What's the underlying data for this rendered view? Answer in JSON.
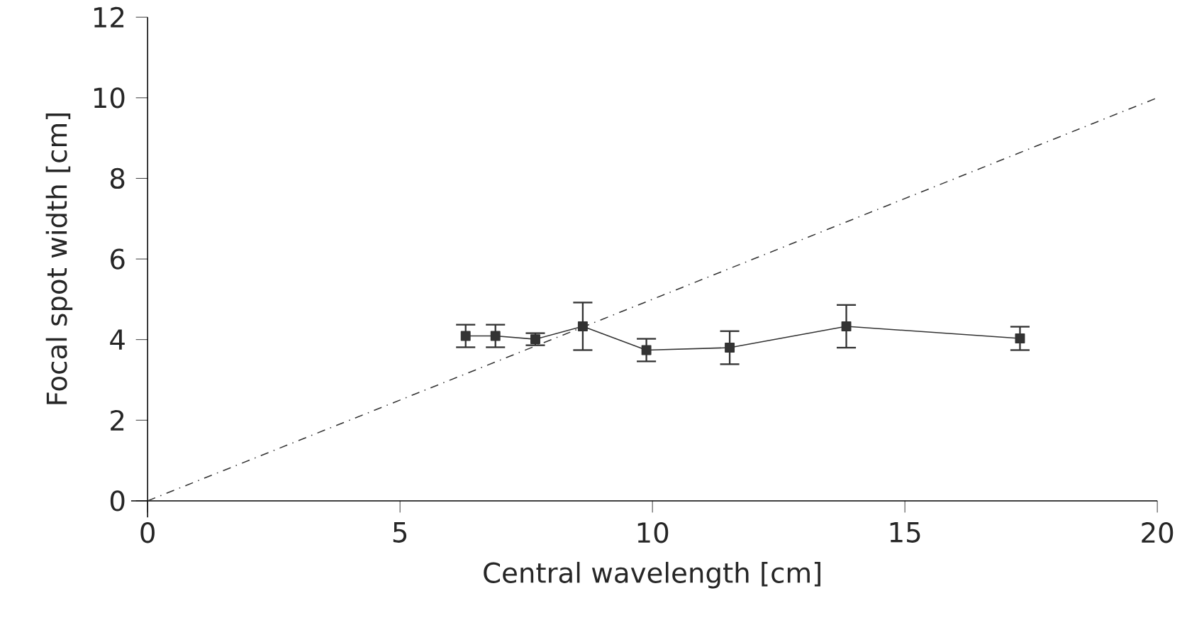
{
  "chart_data": {
    "type": "line",
    "xlabel": "Central wavelength [cm]",
    "ylabel": "Focal spot width [cm]",
    "xlim": [
      0,
      20
    ],
    "ylim": [
      0,
      12
    ],
    "xticks": [
      0,
      5,
      10,
      15,
      20
    ],
    "yticks": [
      0,
      2,
      4,
      6,
      8,
      10,
      12
    ],
    "grid": false,
    "series": [
      {
        "color": "#333333",
        "marker": "square",
        "line_style": "solid",
        "x": [
          6.3,
          6.89,
          7.68,
          8.62,
          9.88,
          11.53,
          13.84,
          17.28
        ],
        "values": [
          4.09,
          4.09,
          4.01,
          4.33,
          3.74,
          3.8,
          4.33,
          4.03
        ],
        "errors": [
          0.28,
          0.28,
          0.15,
          0.59,
          0.28,
          0.41,
          0.53,
          0.29
        ]
      },
      {
        "color": "#333333",
        "marker": "none",
        "line_style": "dashed",
        "x": [
          0,
          20
        ],
        "values": [
          0,
          10
        ]
      }
    ]
  }
}
